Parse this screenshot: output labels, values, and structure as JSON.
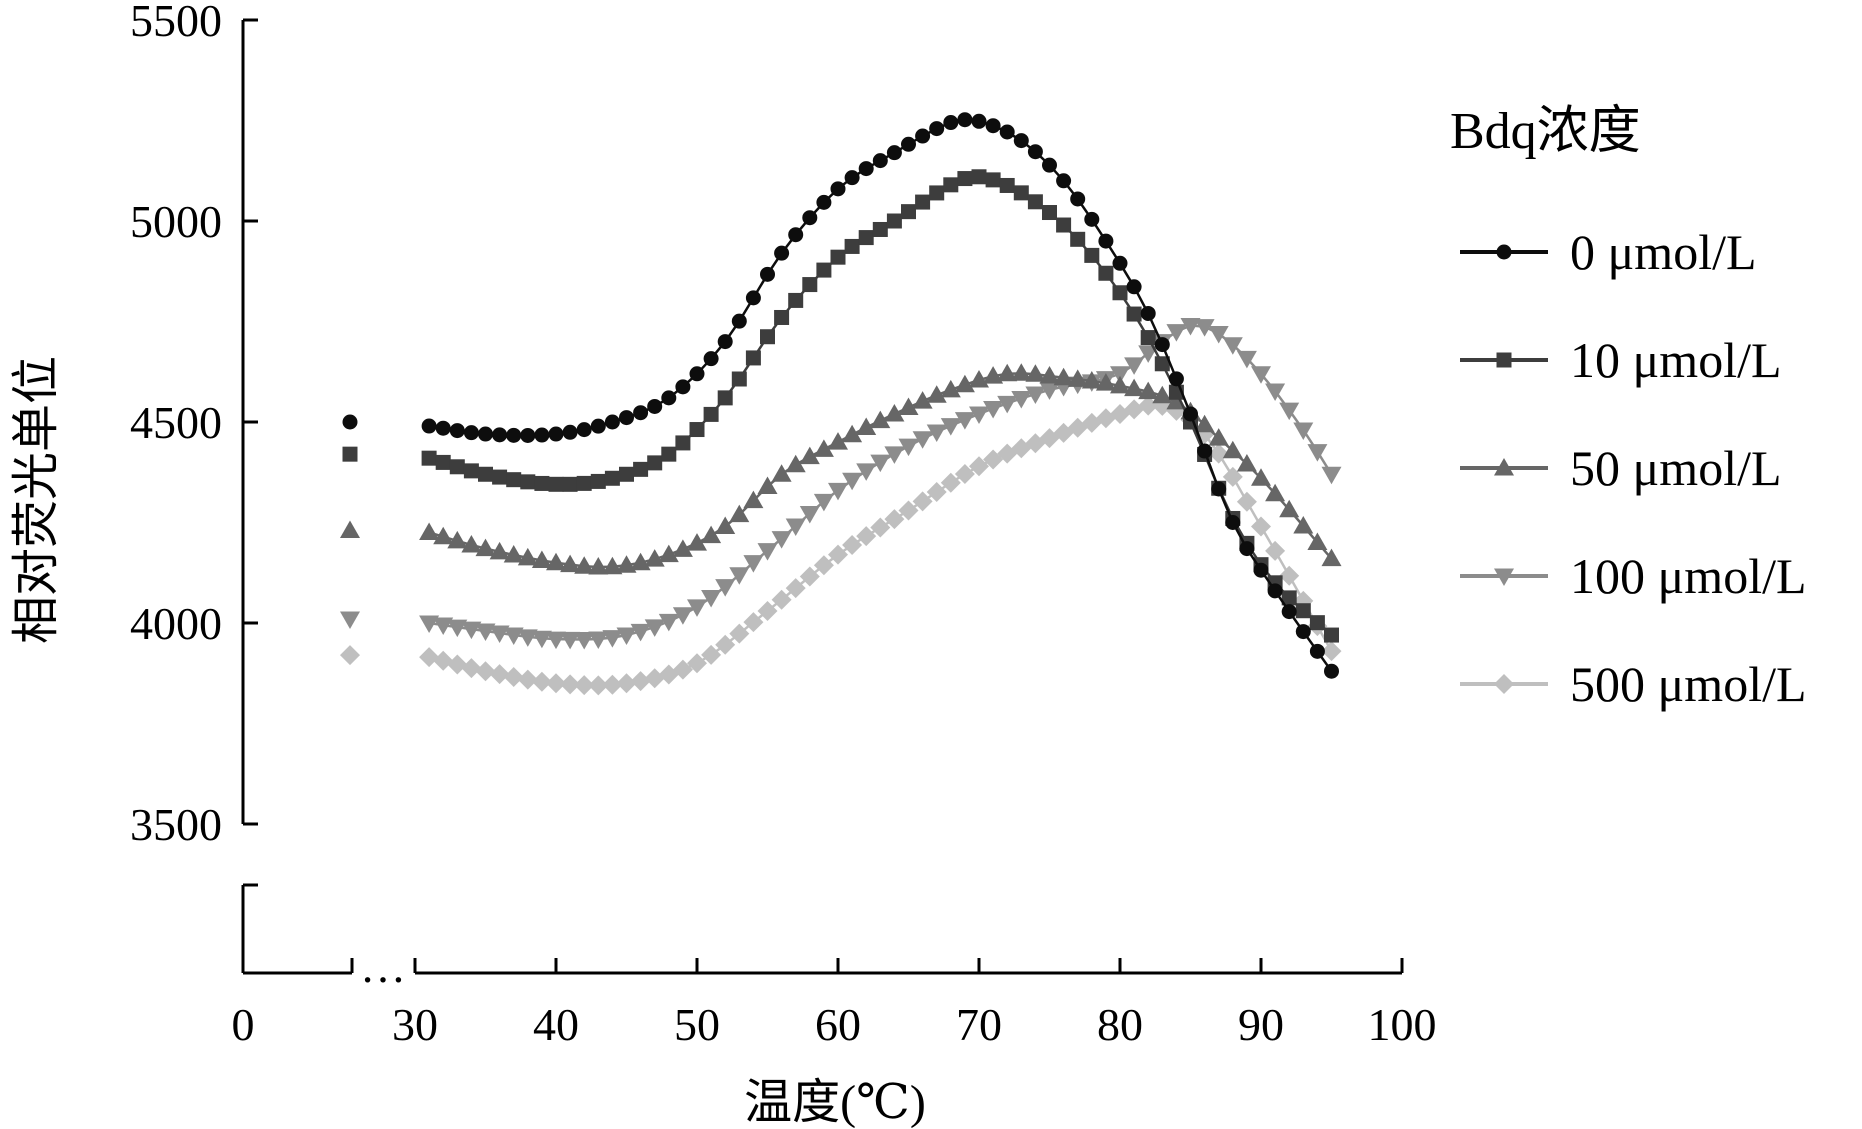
{
  "chart_data": {
    "type": "scatter",
    "xlabel": "温度(℃)",
    "ylabel": "相对荧光单位",
    "x_axis": {
      "ticks": [
        0,
        30,
        40,
        50,
        60,
        70,
        80,
        90,
        100
      ],
      "tick_labels": [
        "0",
        "30",
        "40",
        "50",
        "60",
        "70",
        "80",
        "90",
        "100"
      ],
      "break_marker": "…",
      "range": [
        0,
        100
      ]
    },
    "y_axis": {
      "ticks": [
        3500,
        4000,
        4500,
        5000,
        5500
      ],
      "tick_labels": [
        "3500",
        "4000",
        "4500",
        "5000",
        "5500"
      ],
      "range_shown": [
        3500,
        5500
      ]
    },
    "legend": {
      "title": "Bdq浓度",
      "placement": "right"
    },
    "series": [
      {
        "name": "0 μmol/L",
        "marker": "circle",
        "color": "#0d0d0d",
        "initial_point": 4500,
        "control_points": [
          [
            31,
            4490
          ],
          [
            35,
            4470
          ],
          [
            40,
            4470
          ],
          [
            44,
            4500
          ],
          [
            48,
            4560
          ],
          [
            52,
            4700
          ],
          [
            56,
            4920
          ],
          [
            60,
            5080
          ],
          [
            64,
            5170
          ],
          [
            68,
            5245
          ],
          [
            70,
            5248
          ],
          [
            73,
            5200
          ],
          [
            76,
            5100
          ],
          [
            79,
            4950
          ],
          [
            82,
            4770
          ],
          [
            85,
            4520
          ],
          [
            88,
            4250
          ],
          [
            91,
            4080
          ],
          [
            95,
            3880
          ]
        ]
      },
      {
        "name": "10 μmol/L",
        "marker": "square",
        "color": "#3d3d3d",
        "initial_point": 4420,
        "control_points": [
          [
            31,
            4410
          ],
          [
            35,
            4370
          ],
          [
            40,
            4345
          ],
          [
            44,
            4360
          ],
          [
            48,
            4420
          ],
          [
            52,
            4560
          ],
          [
            56,
            4760
          ],
          [
            60,
            4910
          ],
          [
            64,
            5000
          ],
          [
            68,
            5090
          ],
          [
            70,
            5110
          ],
          [
            73,
            5070
          ],
          [
            76,
            4990
          ],
          [
            79,
            4870
          ],
          [
            82,
            4710
          ],
          [
            85,
            4500
          ],
          [
            88,
            4260
          ],
          [
            91,
            4100
          ],
          [
            95,
            3970
          ]
        ]
      },
      {
        "name": "50 μmol/L",
        "marker": "triangle-up",
        "color": "#666666",
        "initial_point": 4230,
        "control_points": [
          [
            31,
            4225
          ],
          [
            35,
            4185
          ],
          [
            40,
            4150
          ],
          [
            44,
            4140
          ],
          [
            48,
            4170
          ],
          [
            52,
            4240
          ],
          [
            56,
            4370
          ],
          [
            60,
            4450
          ],
          [
            64,
            4520
          ],
          [
            68,
            4580
          ],
          [
            72,
            4620
          ],
          [
            76,
            4610
          ],
          [
            80,
            4590
          ],
          [
            84,
            4550
          ],
          [
            87,
            4460
          ],
          [
            90,
            4360
          ],
          [
            95,
            4160
          ]
        ]
      },
      {
        "name": "100 μmol/L",
        "marker": "triangle-down",
        "color": "#8c8c8c",
        "initial_point": 4010,
        "control_points": [
          [
            31,
            4000
          ],
          [
            35,
            3980
          ],
          [
            40,
            3960
          ],
          [
            45,
            3970
          ],
          [
            50,
            4040
          ],
          [
            55,
            4180
          ],
          [
            60,
            4330
          ],
          [
            65,
            4440
          ],
          [
            70,
            4520
          ],
          [
            75,
            4580
          ],
          [
            80,
            4620
          ],
          [
            83,
            4700
          ],
          [
            85,
            4740
          ],
          [
            87,
            4720
          ],
          [
            90,
            4620
          ],
          [
            93,
            4480
          ],
          [
            95,
            4370
          ]
        ]
      },
      {
        "name": "500 μmol/L",
        "marker": "diamond",
        "color": "#bfbfbf",
        "initial_point": 3920,
        "control_points": [
          [
            31,
            3915
          ],
          [
            35,
            3880
          ],
          [
            40,
            3850
          ],
          [
            45,
            3850
          ],
          [
            50,
            3900
          ],
          [
            55,
            4030
          ],
          [
            60,
            4170
          ],
          [
            65,
            4280
          ],
          [
            70,
            4390
          ],
          [
            75,
            4460
          ],
          [
            80,
            4520
          ],
          [
            83,
            4540
          ],
          [
            86,
            4470
          ],
          [
            90,
            4240
          ],
          [
            95,
            3930
          ]
        ]
      }
    ]
  }
}
